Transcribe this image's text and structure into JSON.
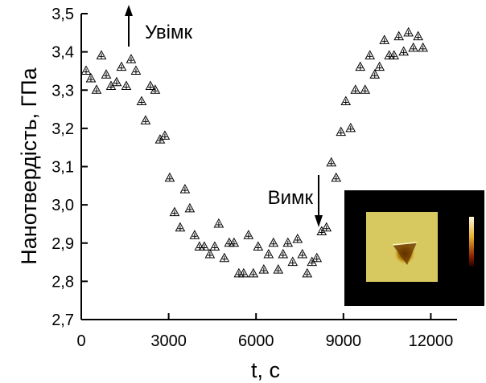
{
  "chart_data": {
    "type": "scatter",
    "x_label": "t, с",
    "y_label": "Нанотвердість, ГПа",
    "annotations": [
      {
        "text": "Увімк"
      },
      {
        "text": "Вимк"
      }
    ],
    "color": "#000000",
    "xlim": [
      0,
      12900
    ],
    "ylim": [
      2.7,
      3.5
    ],
    "xticks": [
      0,
      3000,
      6000,
      9000,
      12000
    ],
    "yticks": [
      {
        "value": 2.7,
        "label": "2,7"
      },
      {
        "value": 2.8,
        "label": "2,8"
      },
      {
        "value": 2.9,
        "label": "2,9"
      },
      {
        "value": 3.0,
        "label": "3,0"
      },
      {
        "value": 3.1,
        "label": "3,1"
      },
      {
        "value": 3.2,
        "label": "3,2"
      },
      {
        "value": 3.3,
        "label": "3,3"
      },
      {
        "value": 3.4,
        "label": "3,4"
      },
      {
        "value": 3.5,
        "label": "3,5"
      }
    ],
    "x": [
      166,
      331,
      524,
      690,
      856,
      1021,
      1214,
      1380,
      1546,
      1711,
      1877,
      2070,
      2208,
      2374,
      2539,
      2705,
      2870,
      3036,
      3202,
      3395,
      3560,
      3726,
      3892,
      4057,
      4223,
      4416,
      4582,
      4720,
      4913,
      5079,
      5244,
      5410,
      5575,
      5741,
      5907,
      6072,
      6266,
      6431,
      6597,
      6762,
      6928,
      7093,
      7259,
      7425,
      7590,
      7756,
      7921,
      8087,
      8253,
      8418,
      8584,
      8750,
      8915,
      9081,
      9247,
      9412,
      9578,
      9744,
      9909,
      10075,
      10240,
      10406,
      10572,
      10737,
      10903,
      11068,
      11234,
      11399,
      11565,
      11731
    ],
    "values": [
      3.35,
      3.33,
      3.3,
      3.39,
      3.34,
      3.31,
      3.32,
      3.36,
      3.31,
      3.38,
      3.35,
      3.27,
      3.22,
      3.31,
      3.3,
      3.17,
      3.18,
      3.07,
      2.98,
      2.94,
      3.04,
      2.99,
      2.92,
      2.89,
      2.89,
      2.87,
      2.89,
      2.95,
      2.86,
      2.9,
      2.9,
      2.82,
      2.82,
      2.92,
      2.82,
      2.89,
      2.83,
      2.87,
      2.9,
      2.83,
      2.87,
      2.9,
      2.85,
      2.91,
      2.87,
      2.82,
      2.85,
      2.86,
      2.93,
      2.94,
      3.11,
      3.07,
      3.19,
      3.27,
      3.2,
      3.3,
      3.36,
      3.3,
      3.39,
      3.34,
      3.36,
      3.43,
      3.39,
      3.39,
      3.44,
      3.4,
      3.45,
      3.41,
      3.44,
      3.41
    ]
  }
}
